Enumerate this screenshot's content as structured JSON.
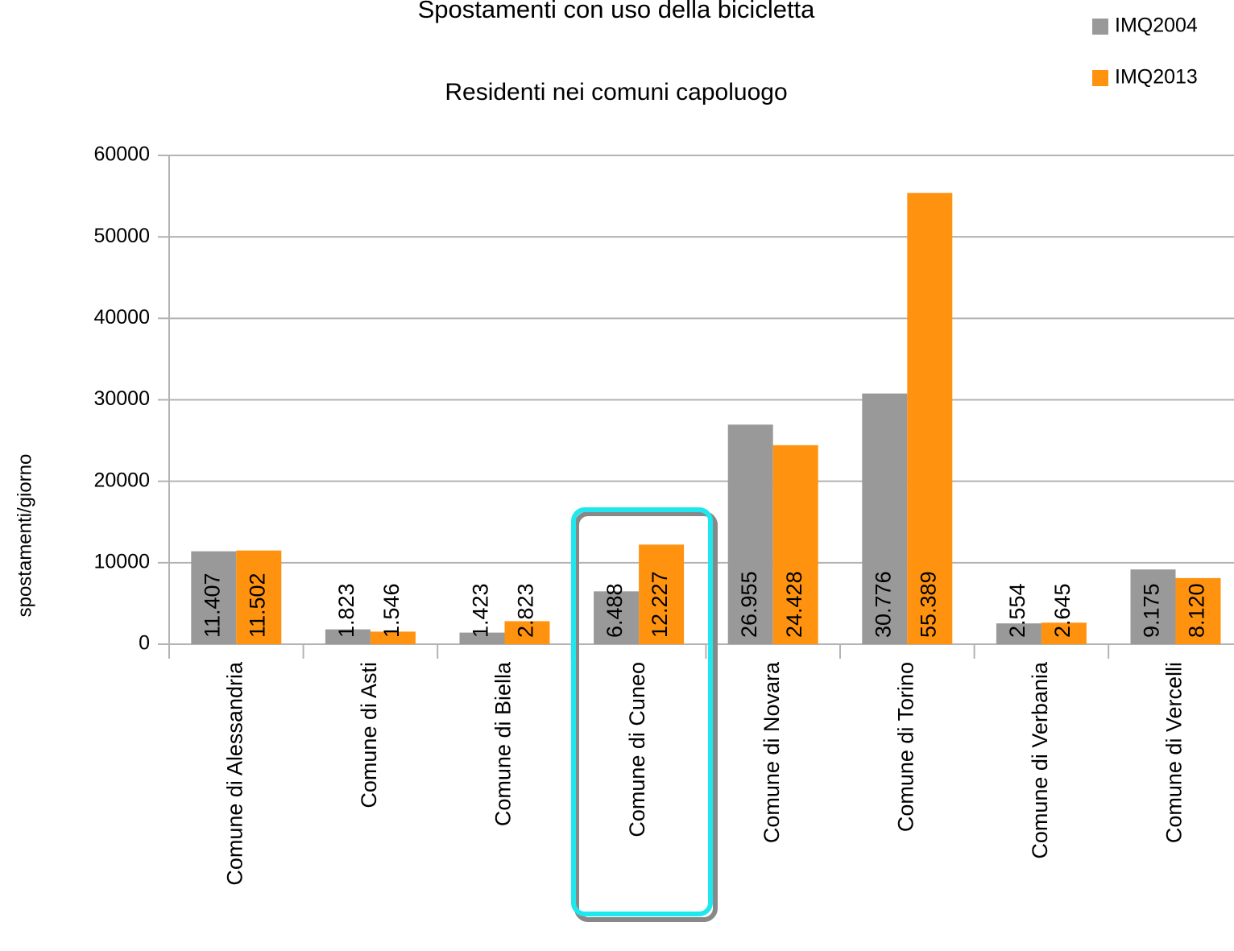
{
  "chart_data": {
    "type": "bar",
    "title": "Spostamenti con uso della bicicletta",
    "subtitle": "Residenti nei comuni capoluogo",
    "y_label": "spostamenti/giorno",
    "categories": [
      "Comune di Alessandria",
      "Comune di Asti",
      "Comune di Biella",
      "Comune di Cuneo",
      "Comune di Novara",
      "Comune di Torino",
      "Comune di Verbania",
      "Comune di Vercelli"
    ],
    "series": [
      {
        "name": "IMQ2004",
        "color": "#999999",
        "values": [
          11407,
          1823,
          1423,
          6488,
          26955,
          30776,
          2554,
          9175
        ],
        "value_labels": [
          "11.407",
          "1.823",
          "1.423",
          "6.488",
          "26.955",
          "30.776",
          "2.554",
          "9.175"
        ]
      },
      {
        "name": "IMQ2013",
        "color": "#ff9310",
        "values": [
          11502,
          1546,
          2823,
          12227,
          24428,
          55389,
          2645,
          8120
        ],
        "value_labels": [
          "11.502",
          "1.546",
          "2.823",
          "12.227",
          "24.428",
          "55.389",
          "2.645",
          "8.120"
        ]
      }
    ],
    "ylim": [
      0,
      60000
    ],
    "yticks": [
      0,
      10000,
      20000,
      30000,
      40000,
      50000,
      60000
    ],
    "grid": true,
    "legend": "top-right"
  }
}
